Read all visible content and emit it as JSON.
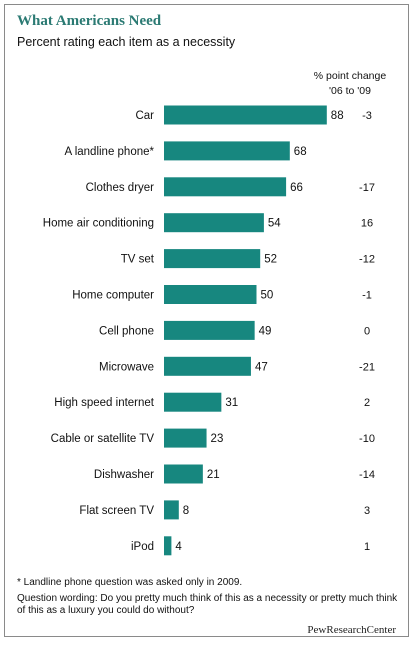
{
  "header": {
    "title": "What Americans Need",
    "subtitle": "Percent rating each item as a necessity",
    "change_label_line1": "% point change",
    "change_label_line2": "'06 to '09"
  },
  "footer": {
    "note": "* Landline phone question was asked only in 2009.",
    "wording": "Question wording: Do you pretty much think of this as a necessity or pretty much think of this as a luxury you could do without?",
    "brand": "PewResearchCenter"
  },
  "colors": {
    "bar": "#17877f",
    "title": "#2b7a73"
  },
  "chart_data": {
    "type": "bar",
    "orientation": "horizontal",
    "categories": [
      "Car",
      "A landline phone*",
      "Clothes dryer",
      "Home air conditioning",
      "TV set",
      "Home computer",
      "Cell phone",
      "Microwave",
      "High speed internet",
      "Cable or satellite TV",
      "Dishwasher",
      "Flat screen TV",
      "iPod"
    ],
    "values": [
      88,
      68,
      66,
      54,
      52,
      50,
      49,
      47,
      31,
      23,
      21,
      8,
      4
    ],
    "value_labels": [
      "88",
      "68",
      "66",
      "54",
      "52",
      "50",
      "49",
      "47",
      "31",
      "23",
      "21",
      "8",
      "4"
    ],
    "point_change": [
      "-3",
      "",
      "-17",
      "16",
      "-12",
      "-1",
      "0",
      "-21",
      "2",
      "-10",
      "-14",
      "3",
      "1"
    ],
    "title": "What Americans Need",
    "subtitle": "Percent rating each item as a necessity",
    "xlim": [
      0,
      100
    ],
    "grid": false,
    "legend": "none"
  }
}
